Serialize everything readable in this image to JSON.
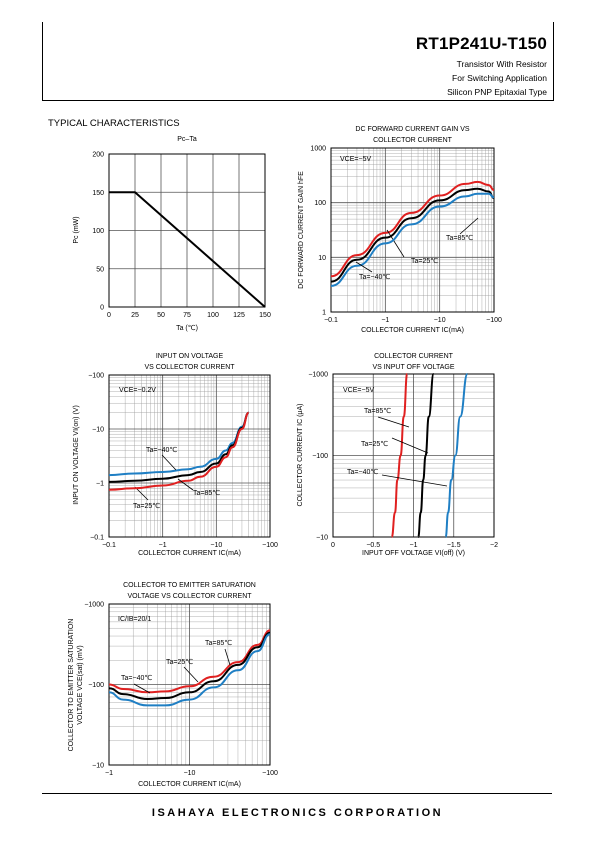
{
  "header": {
    "part_number": "RT1P241U-T150",
    "line1": "Transistor With Resistor",
    "line2": "For Switching Application",
    "line3": "Silicon PNP Epitaxial Type"
  },
  "section_title": "TYPICAL CHARACTERISTICS",
  "footer": {
    "company": "ISAHAYA ELECTRONICS CORPORATION"
  },
  "chart_data": [
    {
      "id": "pc-ta",
      "type": "line",
      "title": "Pc–Ta",
      "xlabel": "Ta (℃)",
      "ylabel": "Pc (mW)",
      "xlim": [
        0,
        150
      ],
      "ylim": [
        0,
        200
      ],
      "xticks": [
        "0",
        "25",
        "50",
        "75",
        "100",
        "125",
        "150"
      ],
      "yticks": [
        "0",
        "50",
        "100",
        "150",
        "200"
      ],
      "grid": true,
      "series": [
        {
          "x": [
            0,
            25,
            150
          ],
          "y": [
            150,
            150,
            0
          ],
          "color": "#000000"
        }
      ]
    },
    {
      "id": "hfe-ic",
      "type": "line",
      "title": "DC FORWARD CURRENT GAIN VS COLLECTOR CURRENT",
      "title_lines": [
        "DC FORWARD CURRENT GAIN  VS",
        "COLLECTOR CURRENT"
      ],
      "xlabel": "COLLECTOR CURRENT  IC(mA)",
      "ylabel": "DC FORWARD CURRENT GAIN hFE",
      "x_scale": "log",
      "y_scale": "log",
      "xlim": [
        -0.1,
        -100
      ],
      "ylim": [
        1,
        1000
      ],
      "xticks": [
        "−0.1",
        "−1",
        "−10",
        "−100"
      ],
      "yticks": [
        "1",
        "10",
        "100",
        "1000"
      ],
      "grid": true,
      "annotation": "VCE=−5V",
      "series": [
        {
          "name": "Ta=85℃",
          "color": "#e02020",
          "x": [
            -0.1,
            -0.3,
            -1,
            -3,
            -10,
            -30,
            -50,
            -80,
            -100
          ],
          "y": [
            4.5,
            11,
            28,
            65,
            135,
            220,
            240,
            210,
            170
          ]
        },
        {
          "name": "Ta=25℃",
          "color": "#000000",
          "x": [
            -0.1,
            -0.3,
            -1,
            -3,
            -10,
            -30,
            -50,
            -80,
            -100
          ],
          "y": [
            3.6,
            9,
            23,
            52,
            110,
            170,
            180,
            160,
            120
          ]
        },
        {
          "name": "Ta=−40℃",
          "color": "#1f7fc4",
          "x": [
            -0.1,
            -0.3,
            -1,
            -3,
            -10,
            -30,
            -50,
            -80,
            -100
          ],
          "y": [
            3,
            7,
            18,
            40,
            85,
            130,
            145,
            145,
            125
          ]
        }
      ]
    },
    {
      "id": "vion-ic",
      "type": "line",
      "title": "INPUT ON VOLTAGE VS COLLECTOR CURRENT",
      "title_lines": [
        "INPUT ON VOLTAGE",
        "VS COLLECTOR CURRENT"
      ],
      "xlabel": "COLLECTOR CURRENT  IC(mA)",
      "ylabel": "INPUT ON VOLTAGE VI(on) (V)",
      "x_scale": "log",
      "y_scale": "log",
      "xlim": [
        -0.1,
        -100
      ],
      "ylim": [
        -0.1,
        -100
      ],
      "xticks": [
        "−0.1",
        "−1",
        "−10",
        "−100"
      ],
      "yticks": [
        "−0.1",
        "−1",
        "−10",
        "−100"
      ],
      "grid": true,
      "annotation": "VCE=−0.2V",
      "series": [
        {
          "name": "Ta=−40℃",
          "color": "#1f7fc4",
          "x": [
            -0.1,
            -0.3,
            -1,
            -3,
            -5,
            -10,
            -15,
            -20,
            -30,
            -40
          ],
          "y": [
            -1.4,
            -1.5,
            -1.6,
            -1.8,
            -2.0,
            -2.8,
            -4.0,
            -5.5,
            -11,
            -20
          ]
        },
        {
          "name": "Ta=25℃",
          "color": "#000000",
          "x": [
            -0.1,
            -0.3,
            -1,
            -3,
            -5,
            -10,
            -15,
            -20,
            -30,
            -40
          ],
          "y": [
            -1.05,
            -1.1,
            -1.2,
            -1.4,
            -1.6,
            -2.3,
            -3.4,
            -5.0,
            -10.5,
            -20
          ]
        },
        {
          "name": "Ta=85℃",
          "color": "#e02020",
          "x": [
            -0.1,
            -0.3,
            -1,
            -3,
            -5,
            -10,
            -15,
            -20,
            -30,
            -40
          ],
          "y": [
            -0.75,
            -0.8,
            -0.9,
            -1.1,
            -1.3,
            -2.0,
            -3.0,
            -4.6,
            -10,
            -20
          ]
        }
      ]
    },
    {
      "id": "ic-vioff",
      "type": "line",
      "title": "COLLECTOR CURRENT VS INPUT OFF VOLTAGE",
      "title_lines": [
        "COLLECTOR CURRENT",
        "VS INPUT OFF VOLTAGE"
      ],
      "xlabel": "INPUT OFF VOLTAGE VI(off) (V)",
      "ylabel": "COLLECTOR CURRENT IC (μA)",
      "x_scale": "linear",
      "y_scale": "log",
      "xlim": [
        0,
        -2
      ],
      "ylim": [
        -10,
        -1000
      ],
      "xticks": [
        "0",
        "−0.5",
        "−1",
        "−1.5",
        "−2"
      ],
      "yticks": [
        "−10",
        "−100",
        "−1000"
      ],
      "grid": true,
      "annotation": "VCE=−5V",
      "series": [
        {
          "name": "Ta=85℃",
          "color": "#e02020",
          "x": [
            -0.73,
            -0.77,
            -0.8,
            -0.84,
            -0.88,
            -0.92
          ],
          "y": [
            -10,
            -20,
            -50,
            -100,
            -300,
            -1000
          ]
        },
        {
          "name": "Ta=25℃",
          "color": "#000000",
          "x": [
            -1.06,
            -1.09,
            -1.12,
            -1.15,
            -1.19,
            -1.25
          ],
          "y": [
            -10,
            -20,
            -50,
            -100,
            -300,
            -1000
          ]
        },
        {
          "name": "Ta=−40℃",
          "color": "#1f7fc4",
          "x": [
            -1.4,
            -1.43,
            -1.47,
            -1.52,
            -1.58,
            -1.67
          ],
          "y": [
            -10,
            -20,
            -50,
            -100,
            -300,
            -1000
          ]
        }
      ]
    },
    {
      "id": "vcesat-ic",
      "type": "line",
      "title": "COLLECTOR TO EMITTER SATURATION VOLTAGE VS COLLECTOR CURRENT",
      "title_lines": [
        "COLLECTOR TO EMITTER SATURATION",
        "VOLTAGE VS COLLECTOR CURRENT"
      ],
      "xlabel": "COLLECTOR CURRENT  IC(mA)",
      "ylabel_lines": [
        "COLLECTOR TO EMITTER SATURATION",
        "VOLTAGE VCE(sat) (mV)"
      ],
      "x_scale": "log",
      "y_scale": "log",
      "xlim": [
        -1,
        -100
      ],
      "ylim": [
        -10,
        -1000
      ],
      "xticks": [
        "−1",
        "−10",
        "−100"
      ],
      "yticks": [
        "−10",
        "−100",
        "−1000"
      ],
      "grid": true,
      "annotation": "IC/IB=20/1",
      "series": [
        {
          "name": "Ta=85℃",
          "color": "#e02020",
          "x": [
            -1,
            -1.5,
            -3,
            -5,
            -10,
            -20,
            -40,
            -70,
            -100
          ],
          "y": [
            -100,
            -88,
            -80,
            -82,
            -95,
            -125,
            -190,
            -310,
            -470
          ]
        },
        {
          "name": "Ta=25℃",
          "color": "#000000",
          "x": [
            -1,
            -1.5,
            -3,
            -5,
            -10,
            -20,
            -40,
            -70,
            -100
          ],
          "y": [
            -90,
            -76,
            -66,
            -68,
            -80,
            -110,
            -175,
            -290,
            -440
          ]
        },
        {
          "name": "Ta=−40℃",
          "color": "#1f7fc4",
          "x": [
            -1,
            -1.5,
            -3,
            -5,
            -10,
            -20,
            -40,
            -70,
            -100
          ],
          "y": [
            -80,
            -65,
            -55,
            -55,
            -65,
            -92,
            -150,
            -260,
            -420
          ]
        }
      ]
    }
  ]
}
